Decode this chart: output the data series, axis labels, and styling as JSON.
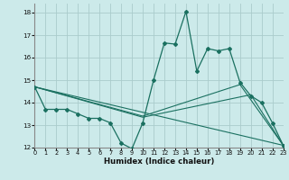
{
  "xlabel": "Humidex (Indice chaleur)",
  "background_color": "#cceaea",
  "grid_color": "#aacccc",
  "line_color": "#1a7060",
  "xlim": [
    0,
    23
  ],
  "ylim": [
    12,
    18.4
  ],
  "xticks": [
    0,
    1,
    2,
    3,
    4,
    5,
    6,
    7,
    8,
    9,
    10,
    11,
    12,
    13,
    14,
    15,
    16,
    17,
    18,
    19,
    20,
    21,
    22,
    23
  ],
  "yticks": [
    12,
    13,
    14,
    15,
    16,
    17,
    18
  ],
  "main_x": [
    0,
    1,
    2,
    3,
    4,
    5,
    6,
    7,
    8,
    9,
    10,
    11,
    12,
    13,
    14,
    15,
    16,
    17,
    18,
    19,
    20,
    21,
    22,
    23
  ],
  "main_y": [
    14.7,
    13.7,
    13.7,
    13.7,
    13.5,
    13.3,
    13.3,
    13.1,
    12.2,
    11.95,
    13.1,
    15.0,
    16.65,
    16.6,
    18.05,
    15.4,
    16.4,
    16.3,
    16.4,
    14.9,
    14.3,
    14.0,
    13.1,
    12.1
  ],
  "line2_x": [
    0,
    23
  ],
  "line2_y": [
    14.7,
    12.1
  ],
  "line3_x": [
    0,
    10,
    19,
    23
  ],
  "line3_y": [
    14.7,
    13.4,
    14.8,
    12.1
  ],
  "line4_x": [
    0,
    10,
    20,
    23
  ],
  "line4_y": [
    14.7,
    13.35,
    14.35,
    12.1
  ]
}
